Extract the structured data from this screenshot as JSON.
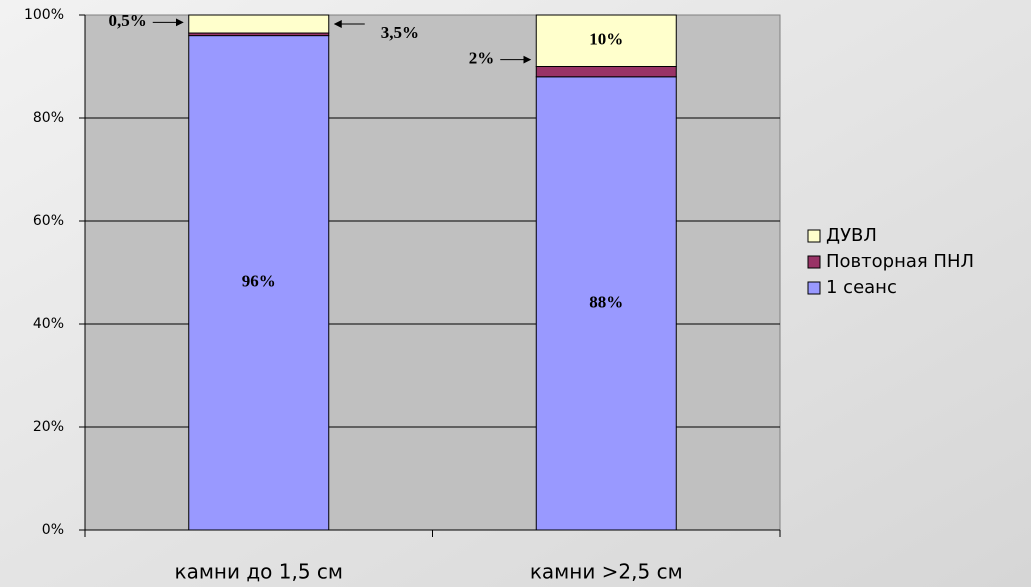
{
  "chart_data": {
    "type": "stacked_bar",
    "categories": [
      "камни до 1,5 см",
      "камни >2,5 см"
    ],
    "series": [
      {
        "name": "1 сеанс",
        "color": "#9999ff",
        "values": [
          96,
          88
        ],
        "value_labels": [
          "96%",
          "88%"
        ]
      },
      {
        "name": "Повторная ПНЛ",
        "color": "#993366",
        "values": [
          0.5,
          2
        ],
        "value_labels": [
          "0,5%",
          "2%"
        ]
      },
      {
        "name": "ДУВЛ",
        "color": "#ffffcc",
        "values": [
          3.5,
          10
        ],
        "value_labels": [
          "3,5%",
          "10%"
        ]
      }
    ],
    "ylim": [
      0,
      100
    ],
    "yticks": [
      {
        "value": 0,
        "label": "0%"
      },
      {
        "value": 20,
        "label": "20%"
      },
      {
        "value": 40,
        "label": "40%"
      },
      {
        "value": 60,
        "label": "60%"
      },
      {
        "value": 80,
        "label": "80%"
      },
      {
        "value": 100,
        "label": "100%"
      }
    ],
    "grid": true,
    "legend": "right"
  }
}
